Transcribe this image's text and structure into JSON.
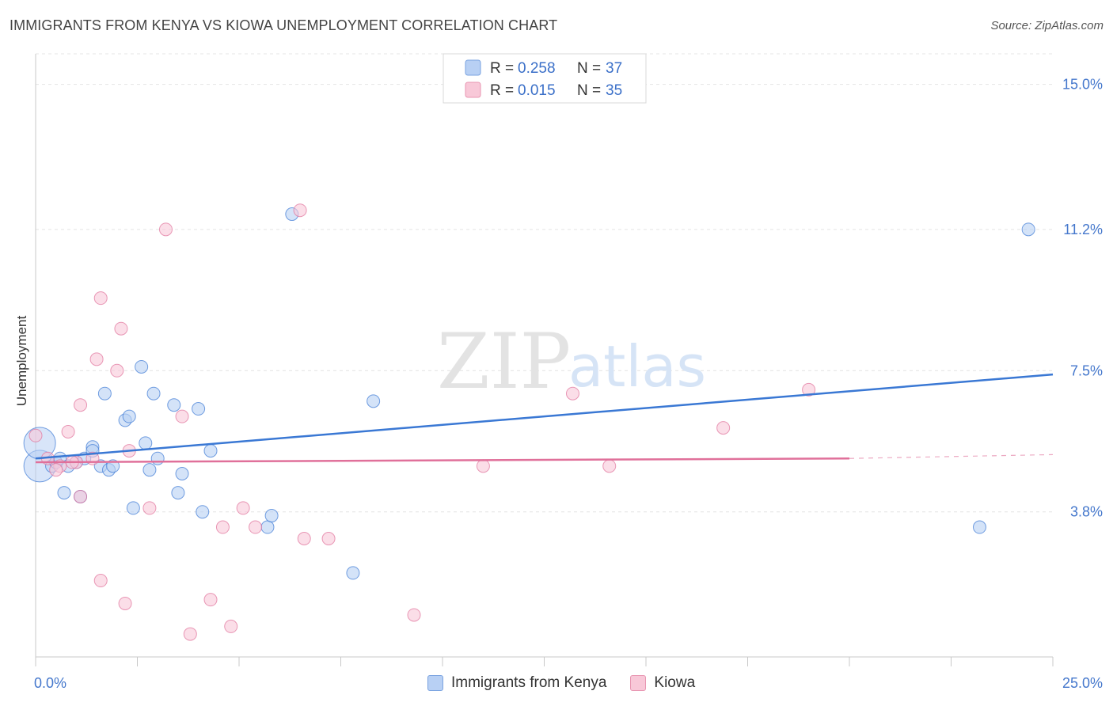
{
  "header": {
    "title": "IMMIGRANTS FROM KENYA VS KIOWA UNEMPLOYMENT CORRELATION CHART",
    "source": "Source: ZipAtlas.com"
  },
  "watermark": {
    "zip": "ZIP",
    "atlas": "atlas"
  },
  "legend": {
    "rows": [
      {
        "r_label": "R =",
        "r_value": "0.258",
        "n_label": "N =",
        "n_value": "37"
      },
      {
        "r_label": "R =",
        "r_value": "0.015",
        "n_label": "N =",
        "n_value": "35"
      }
    ]
  },
  "bottom_legend": {
    "series1": "Immigrants from Kenya",
    "series2": "Kiowa"
  },
  "colors": {
    "blue": "#3a78d4",
    "blue_fill": "#b8d0f4",
    "pink": "#e0709a",
    "pink_fill": "#f8c8d8"
  },
  "chart_data": {
    "type": "scatter",
    "title": "IMMIGRANTS FROM KENYA VS KIOWA UNEMPLOYMENT CORRELATION CHART",
    "xlabel": "",
    "ylabel": "Unemployment",
    "xlim": [
      0,
      25
    ],
    "ylim": [
      0,
      15.8
    ],
    "x_ticks": [
      0,
      2.5,
      5,
      7.5,
      10,
      12.5,
      15,
      17.5,
      20,
      22.5,
      25
    ],
    "x_tick_labels": [
      {
        "value": 0,
        "label": "0.0%"
      },
      {
        "value": 25,
        "label": "25.0%"
      }
    ],
    "y_ticks": [
      {
        "value": 3.8,
        "label": "3.8%"
      },
      {
        "value": 7.5,
        "label": "7.5%"
      },
      {
        "value": 11.2,
        "label": "11.2%"
      },
      {
        "value": 15.0,
        "label": "15.0%"
      }
    ],
    "series": [
      {
        "name": "Immigrants from Kenya",
        "color": "#3a78d4",
        "fill": "#b8d0f4",
        "trend": {
          "x0": 0,
          "y0": 5.2,
          "x1": 25,
          "y1": 7.4
        },
        "points": [
          {
            "x": 0.1,
            "y": 5.0,
            "big": true
          },
          {
            "x": 0.1,
            "y": 5.6,
            "big": true
          },
          {
            "x": 0.4,
            "y": 5.0
          },
          {
            "x": 0.5,
            "y": 5.1
          },
          {
            "x": 0.6,
            "y": 5.2
          },
          {
            "x": 0.7,
            "y": 4.3
          },
          {
            "x": 0.8,
            "y": 5.0
          },
          {
            "x": 1.0,
            "y": 5.1
          },
          {
            "x": 1.1,
            "y": 4.2
          },
          {
            "x": 1.2,
            "y": 5.2
          },
          {
            "x": 1.4,
            "y": 5.5
          },
          {
            "x": 1.4,
            "y": 5.4
          },
          {
            "x": 1.6,
            "y": 5.0
          },
          {
            "x": 1.7,
            "y": 6.9
          },
          {
            "x": 1.8,
            "y": 4.9
          },
          {
            "x": 1.9,
            "y": 5.0
          },
          {
            "x": 2.2,
            "y": 6.2
          },
          {
            "x": 2.3,
            "y": 6.3
          },
          {
            "x": 2.4,
            "y": 3.9
          },
          {
            "x": 2.6,
            "y": 7.6
          },
          {
            "x": 2.7,
            "y": 5.6
          },
          {
            "x": 2.8,
            "y": 4.9
          },
          {
            "x": 2.9,
            "y": 6.9
          },
          {
            "x": 3.0,
            "y": 5.2
          },
          {
            "x": 3.4,
            "y": 6.6
          },
          {
            "x": 3.5,
            "y": 4.3
          },
          {
            "x": 3.6,
            "y": 4.8
          },
          {
            "x": 4.0,
            "y": 6.5
          },
          {
            "x": 4.1,
            "y": 3.8
          },
          {
            "x": 4.3,
            "y": 5.4
          },
          {
            "x": 5.7,
            "y": 3.4
          },
          {
            "x": 5.8,
            "y": 3.7
          },
          {
            "x": 6.3,
            "y": 11.6
          },
          {
            "x": 7.8,
            "y": 2.2
          },
          {
            "x": 8.3,
            "y": 6.7
          },
          {
            "x": 23.2,
            "y": 3.4
          },
          {
            "x": 24.4,
            "y": 11.2
          }
        ]
      },
      {
        "name": "Kiowa",
        "color": "#e0709a",
        "fill": "#f8c8d8",
        "trend": {
          "x0": 0,
          "y0": 5.1,
          "x1": 20,
          "y1": 5.2,
          "dash_x1": 25,
          "dash_y1": 5.3
        },
        "points": [
          {
            "x": 0.0,
            "y": 5.8
          },
          {
            "x": 0.3,
            "y": 5.2
          },
          {
            "x": 0.6,
            "y": 5.0
          },
          {
            "x": 0.8,
            "y": 5.9
          },
          {
            "x": 1.0,
            "y": 5.1
          },
          {
            "x": 1.1,
            "y": 4.2
          },
          {
            "x": 1.1,
            "y": 6.6
          },
          {
            "x": 1.4,
            "y": 5.2
          },
          {
            "x": 1.5,
            "y": 7.8
          },
          {
            "x": 1.6,
            "y": 2.0
          },
          {
            "x": 1.6,
            "y": 9.4
          },
          {
            "x": 2.0,
            "y": 7.5
          },
          {
            "x": 2.1,
            "y": 8.6
          },
          {
            "x": 2.2,
            "y": 1.4
          },
          {
            "x": 2.3,
            "y": 5.4
          },
          {
            "x": 2.8,
            "y": 3.9
          },
          {
            "x": 3.2,
            "y": 11.2
          },
          {
            "x": 3.6,
            "y": 6.3
          },
          {
            "x": 3.8,
            "y": 0.6
          },
          {
            "x": 4.3,
            "y": 1.5
          },
          {
            "x": 4.6,
            "y": 3.4
          },
          {
            "x": 4.8,
            "y": 0.8
          },
          {
            "x": 5.1,
            "y": 3.9
          },
          {
            "x": 5.4,
            "y": 3.4
          },
          {
            "x": 6.5,
            "y": 11.7
          },
          {
            "x": 6.6,
            "y": 3.1
          },
          {
            "x": 7.2,
            "y": 3.1
          },
          {
            "x": 9.3,
            "y": 1.1
          },
          {
            "x": 11.0,
            "y": 5.0
          },
          {
            "x": 13.2,
            "y": 6.9
          },
          {
            "x": 14.1,
            "y": 5.0
          },
          {
            "x": 16.9,
            "y": 6.0
          },
          {
            "x": 19.0,
            "y": 7.0
          },
          {
            "x": 0.9,
            "y": 5.1
          },
          {
            "x": 0.5,
            "y": 4.9
          }
        ]
      }
    ]
  }
}
